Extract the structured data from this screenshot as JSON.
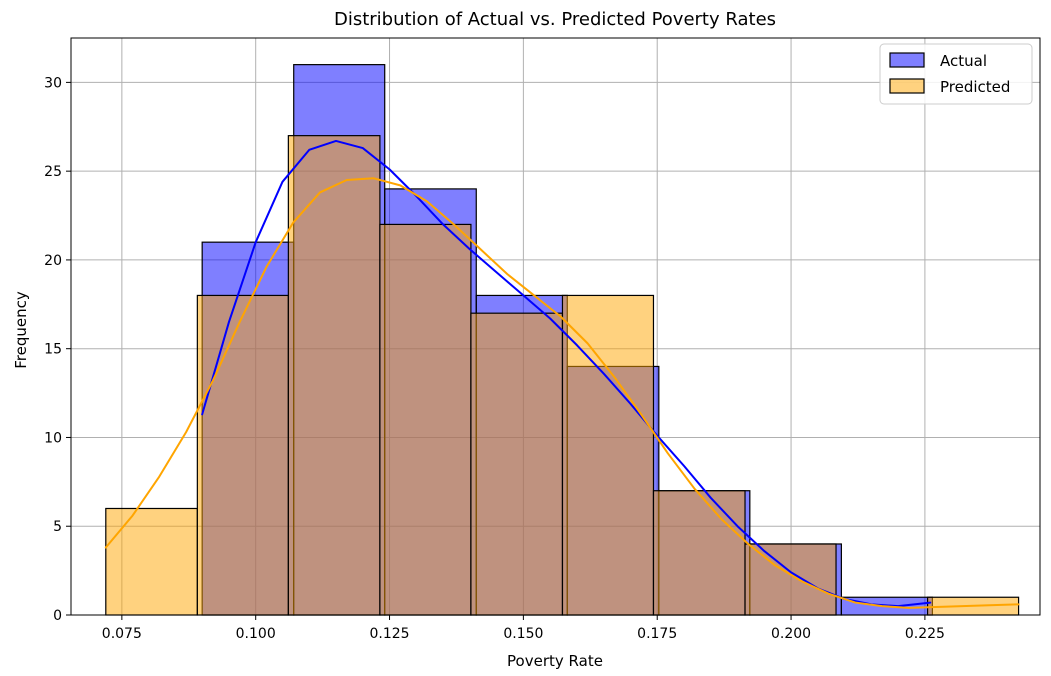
{
  "chart_data": {
    "type": "histogram",
    "title": "Distribution of Actual vs. Predicted Poverty Rates",
    "xlabel": "Poverty Rate",
    "ylabel": "Frequency",
    "xlim": [
      0.0655,
      0.2465
    ],
    "ylim": [
      0,
      32.5
    ],
    "xticks": [
      0.075,
      0.1,
      0.125,
      0.15,
      0.175,
      0.2,
      0.225
    ],
    "xtick_labels": [
      "0.075",
      "0.100",
      "0.125",
      "0.150",
      "0.175",
      "0.200",
      "0.225"
    ],
    "yticks": [
      0,
      5,
      10,
      15,
      20,
      25,
      30
    ],
    "ytick_labels": [
      "0",
      "5",
      "10",
      "15",
      "20",
      "25",
      "30"
    ],
    "grid": true,
    "legend_position": "top-right",
    "series": [
      {
        "name": "Actual",
        "color": "#0000ff",
        "fill_opacity": 0.5,
        "kde_color": "#0000ff",
        "bins": [
          {
            "x0": 0.09,
            "x1": 0.1071,
            "count": 21
          },
          {
            "x0": 0.1071,
            "x1": 0.1241,
            "count": 31
          },
          {
            "x0": 0.1241,
            "x1": 0.1412,
            "count": 24
          },
          {
            "x0": 0.1412,
            "x1": 0.1582,
            "count": 18
          },
          {
            "x0": 0.1582,
            "x1": 0.1753,
            "count": 14
          },
          {
            "x0": 0.1753,
            "x1": 0.1923,
            "count": 7
          },
          {
            "x0": 0.1923,
            "x1": 0.2094,
            "count": 4
          },
          {
            "x0": 0.2094,
            "x1": 0.2264,
            "count": 1
          }
        ],
        "kde": {
          "x": [
            0.09,
            0.095,
            0.1,
            0.105,
            0.11,
            0.115,
            0.12,
            0.125,
            0.13,
            0.135,
            0.14,
            0.145,
            0.15,
            0.155,
            0.16,
            0.165,
            0.17,
            0.175,
            0.18,
            0.185,
            0.19,
            0.195,
            0.2,
            0.205,
            0.21,
            0.215,
            0.22,
            0.226
          ],
          "y": [
            11.3,
            16.5,
            21.0,
            24.4,
            26.2,
            26.7,
            26.3,
            25.1,
            23.6,
            22.0,
            20.6,
            19.3,
            18.0,
            16.7,
            15.2,
            13.6,
            11.9,
            10.1,
            8.4,
            6.6,
            5.0,
            3.6,
            2.4,
            1.5,
            0.9,
            0.6,
            0.5,
            0.7
          ]
        }
      },
      {
        "name": "Predicted",
        "color": "#ffa500",
        "fill_opacity": 0.5,
        "kde_color": "#ffa500",
        "bins": [
          {
            "x0": 0.072,
            "x1": 0.0891,
            "count": 6
          },
          {
            "x0": 0.0891,
            "x1": 0.1061,
            "count": 18
          },
          {
            "x0": 0.1061,
            "x1": 0.1232,
            "count": 27
          },
          {
            "x0": 0.1232,
            "x1": 0.1402,
            "count": 22
          },
          {
            "x0": 0.1402,
            "x1": 0.1573,
            "count": 17
          },
          {
            "x0": 0.1573,
            "x1": 0.1743,
            "count": 18
          },
          {
            "x0": 0.1743,
            "x1": 0.1914,
            "count": 7
          },
          {
            "x0": 0.1914,
            "x1": 0.2084,
            "count": 4
          },
          {
            "x0": 0.2084,
            "x1": 0.2255,
            "count": 0
          },
          {
            "x0": 0.2255,
            "x1": 0.2425,
            "count": 1
          }
        ],
        "kde": {
          "x": [
            0.072,
            0.077,
            0.082,
            0.087,
            0.092,
            0.097,
            0.102,
            0.107,
            0.112,
            0.117,
            0.122,
            0.127,
            0.132,
            0.137,
            0.142,
            0.147,
            0.152,
            0.157,
            0.162,
            0.167,
            0.172,
            0.177,
            0.182,
            0.187,
            0.192,
            0.197,
            0.202,
            0.207,
            0.212,
            0.217,
            0.222,
            0.227,
            0.232,
            0.237,
            0.2425
          ],
          "y": [
            3.8,
            5.6,
            7.8,
            10.3,
            13.2,
            16.5,
            19.6,
            22.1,
            23.8,
            24.5,
            24.6,
            24.2,
            23.3,
            22.0,
            20.6,
            19.2,
            18.0,
            16.8,
            15.3,
            13.4,
            11.3,
            9.1,
            7.1,
            5.4,
            4.0,
            2.8,
            1.9,
            1.2,
            0.7,
            0.5,
            0.4,
            0.45,
            0.5,
            0.55,
            0.6
          ]
        }
      }
    ]
  }
}
